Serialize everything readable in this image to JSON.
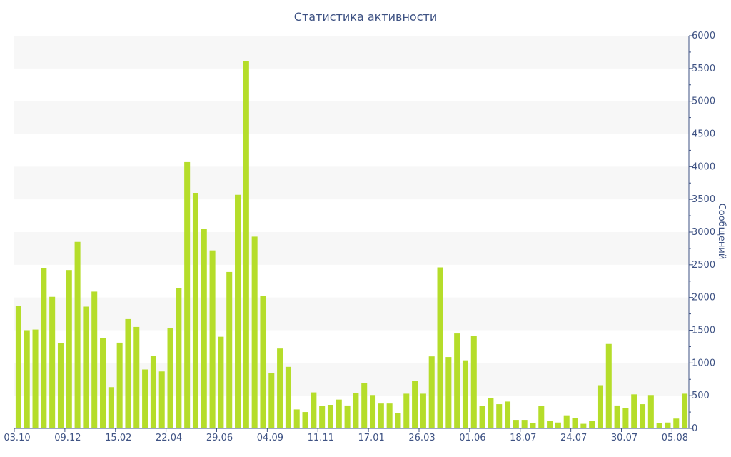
{
  "chart_data": {
    "type": "bar",
    "title": "Статистика активности",
    "ylabel": "Сообщений",
    "xlabel": "",
    "ylim": [
      0,
      6000
    ],
    "y_ticks": [
      0,
      500,
      1000,
      1500,
      2000,
      2500,
      3000,
      3500,
      4000,
      4500,
      5000,
      5500,
      6000
    ],
    "x_tick_labels": [
      {
        "index": 0,
        "label": "03.10"
      },
      {
        "index": 6,
        "label": "09.12"
      },
      {
        "index": 12,
        "label": "15.02"
      },
      {
        "index": 18,
        "label": "22.04"
      },
      {
        "index": 24,
        "label": "29.06"
      },
      {
        "index": 30,
        "label": "04.09"
      },
      {
        "index": 36,
        "label": "11.11"
      },
      {
        "index": 42,
        "label": "17.01"
      },
      {
        "index": 48,
        "label": "26.03"
      },
      {
        "index": 54,
        "label": "01.06"
      },
      {
        "index": 60,
        "label": "18.07"
      },
      {
        "index": 66,
        "label": "24.07"
      },
      {
        "index": 72,
        "label": "30.07"
      },
      {
        "index": 78,
        "label": "05.08"
      }
    ],
    "values": [
      1870,
      1500,
      1510,
      2450,
      2010,
      1300,
      2420,
      2850,
      1860,
      2090,
      1380,
      630,
      1310,
      1670,
      1550,
      900,
      1110,
      870,
      1530,
      2140,
      4070,
      3600,
      3050,
      2720,
      1400,
      2390,
      3570,
      5610,
      2930,
      2020,
      850,
      1220,
      940,
      290,
      250,
      550,
      340,
      360,
      440,
      350,
      540,
      690,
      510,
      380,
      380,
      230,
      530,
      720,
      530,
      1100,
      2460,
      1090,
      1450,
      1040,
      1410,
      340,
      460,
      370,
      410,
      130,
      130,
      80,
      340,
      110,
      90,
      200,
      160,
      70,
      110,
      660,
      1290,
      350,
      310,
      520,
      370,
      510,
      80,
      90,
      150,
      530
    ],
    "grid": "alternating horizontal bands",
    "colors": {
      "bar": "#b5dd2a",
      "band": "#f7f7f7",
      "axis": "#3e5283",
      "text": "#3e5283"
    }
  }
}
